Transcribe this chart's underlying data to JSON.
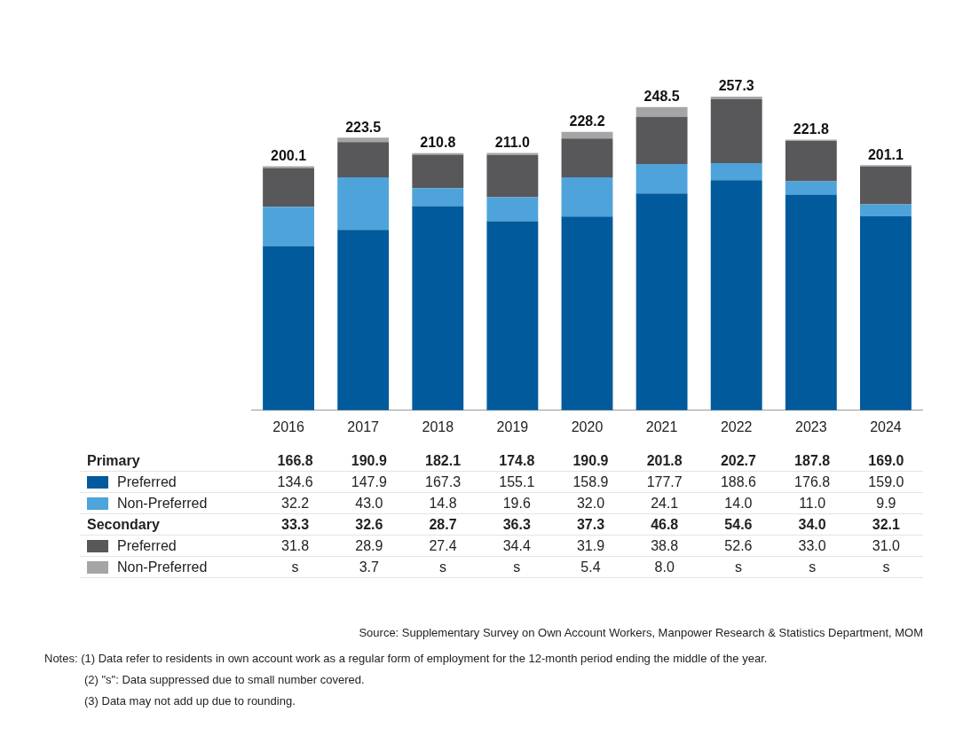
{
  "chart_data": {
    "type": "bar",
    "stacked": true,
    "legend": "bottom",
    "tick_labels": "x",
    "categories": [
      "2016",
      "2017",
      "2018",
      "2019",
      "2020",
      "2021",
      "2022",
      "2023",
      "2024"
    ],
    "series": [
      {
        "name": "Preferred",
        "color": "#005a9c",
        "values": [
          134.6,
          147.9,
          167.3,
          155.1,
          158.9,
          177.7,
          188.6,
          176.8,
          159.0
        ],
        "value_labels": [
          "134.6",
          "147.9",
          "167.3",
          "155.1",
          "158.9",
          "177.7",
          "188.6",
          "176.8",
          "159.0"
        ]
      },
      {
        "name": "Non-Preferred",
        "color": "#4ea3db",
        "values": [
          32.2,
          43.0,
          14.8,
          19.6,
          32.0,
          24.1,
          14.0,
          11.0,
          9.9
        ],
        "value_labels": [
          "32.2",
          "43.0",
          "14.8",
          "19.6",
          "32.0",
          "24.1",
          "14.0",
          "11.0",
          "9.9"
        ]
      },
      {
        "name": "Preferred",
        "color": "#58585b",
        "values": [
          31.8,
          28.9,
          27.4,
          34.4,
          31.9,
          38.8,
          52.6,
          33.0,
          31.0
        ],
        "value_labels": [
          "31.8",
          "28.9",
          "27.4",
          "34.4",
          "31.9",
          "38.8",
          "52.6",
          "33.0",
          "31.0"
        ]
      },
      {
        "name": "Non-Preferred",
        "color": "#a5a5a7",
        "values": [
          1.5,
          3.7,
          1.3,
          1.9,
          5.4,
          8.0,
          2.0,
          1.0,
          1.1
        ],
        "value_labels": [
          "s",
          "3.7",
          "s",
          "s",
          "5.4",
          "8.0",
          "s",
          "s",
          "s"
        ]
      }
    ],
    "totals": [
      "200.1",
      "223.5",
      "210.8",
      "211.0",
      "228.2",
      "248.5",
      "257.3",
      "221.8",
      "201.1"
    ],
    "annotations": [
      "Primary",
      "166.8",
      "190.9",
      "182.1",
      "174.8",
      "190.9",
      "201.8",
      "202.7",
      "187.8",
      "169.0",
      "Secondary",
      "33.3",
      "32.6",
      "28.7",
      "36.3",
      "37.3",
      "46.8",
      "54.6",
      "34.0",
      "32.1",
      "Source: Supplementary Survey on Own Account Workers, Manpower Research & Statistics Department, MOM",
      "Notes:  (1) Data refer to residents in own account work as a regular form of employment for the 12-month period ending the middle of the year.",
      "(2) \"s\": Data suppressed due to small number covered.",
      "(3) Data may not add up due to rounding."
    ]
  }
}
